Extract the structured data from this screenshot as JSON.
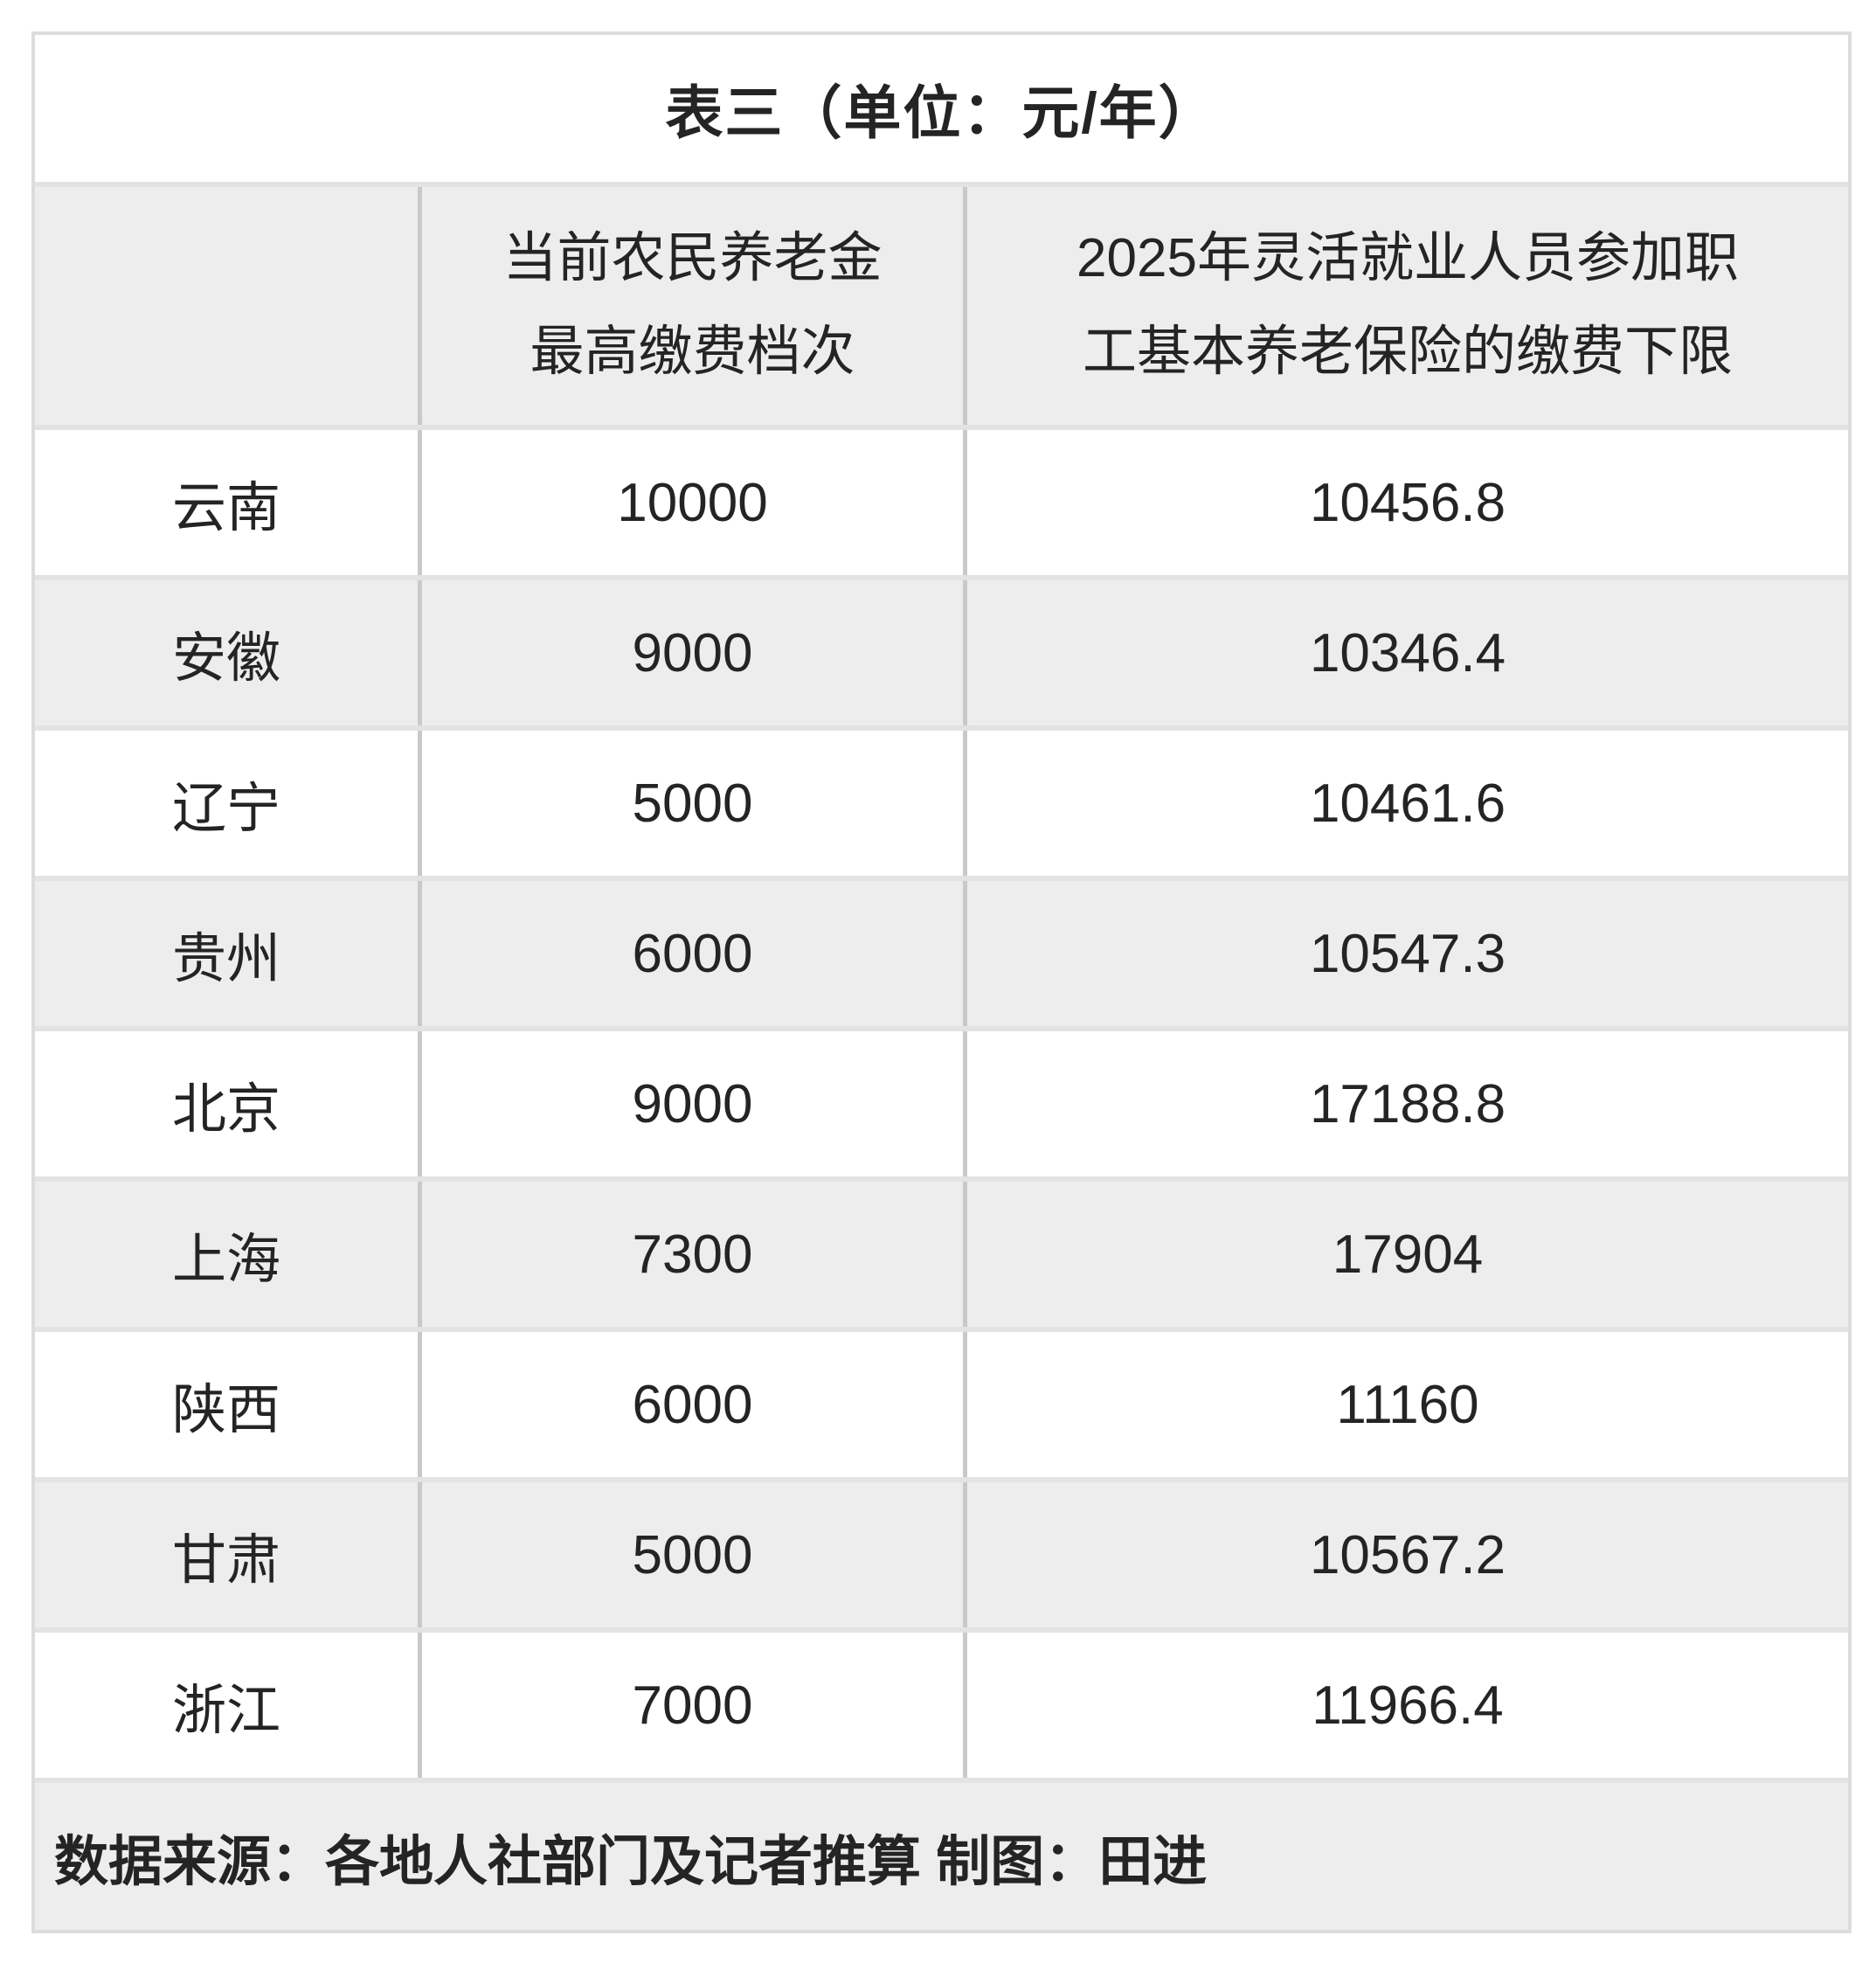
{
  "chart_data": {
    "type": "table",
    "title": "表三（单位：元/年）",
    "columns": [
      "",
      "当前农民养老金\n最高缴费档次",
      "2025年灵活就业人员参加职\n工基本养老保险的缴费下限"
    ],
    "rows": [
      [
        "云南",
        10000,
        10456.8
      ],
      [
        "安徽",
        9000,
        10346.4
      ],
      [
        "辽宁",
        5000,
        10461.6
      ],
      [
        "贵州",
        6000,
        10547.3
      ],
      [
        "北京",
        9000,
        17188.8
      ],
      [
        "上海",
        7300,
        17904
      ],
      [
        "陕西",
        6000,
        11160
      ],
      [
        "甘肃",
        5000,
        10567.2
      ],
      [
        "浙江",
        7000,
        11966.4
      ]
    ],
    "footer": "数据来源：各地人社部门及记者推算 制图：田进",
    "layout": {
      "grid": "on",
      "row_striping": "white-gray-alternating",
      "value_alignment": "center"
    },
    "colors": {
      "row_alt_gray": "#ededed",
      "row_divider": "#e3e3e3",
      "column_border": "#c9c9c9",
      "outer_border": "#dcdcdc",
      "text": "#242424",
      "background": "#ffffff"
    }
  }
}
